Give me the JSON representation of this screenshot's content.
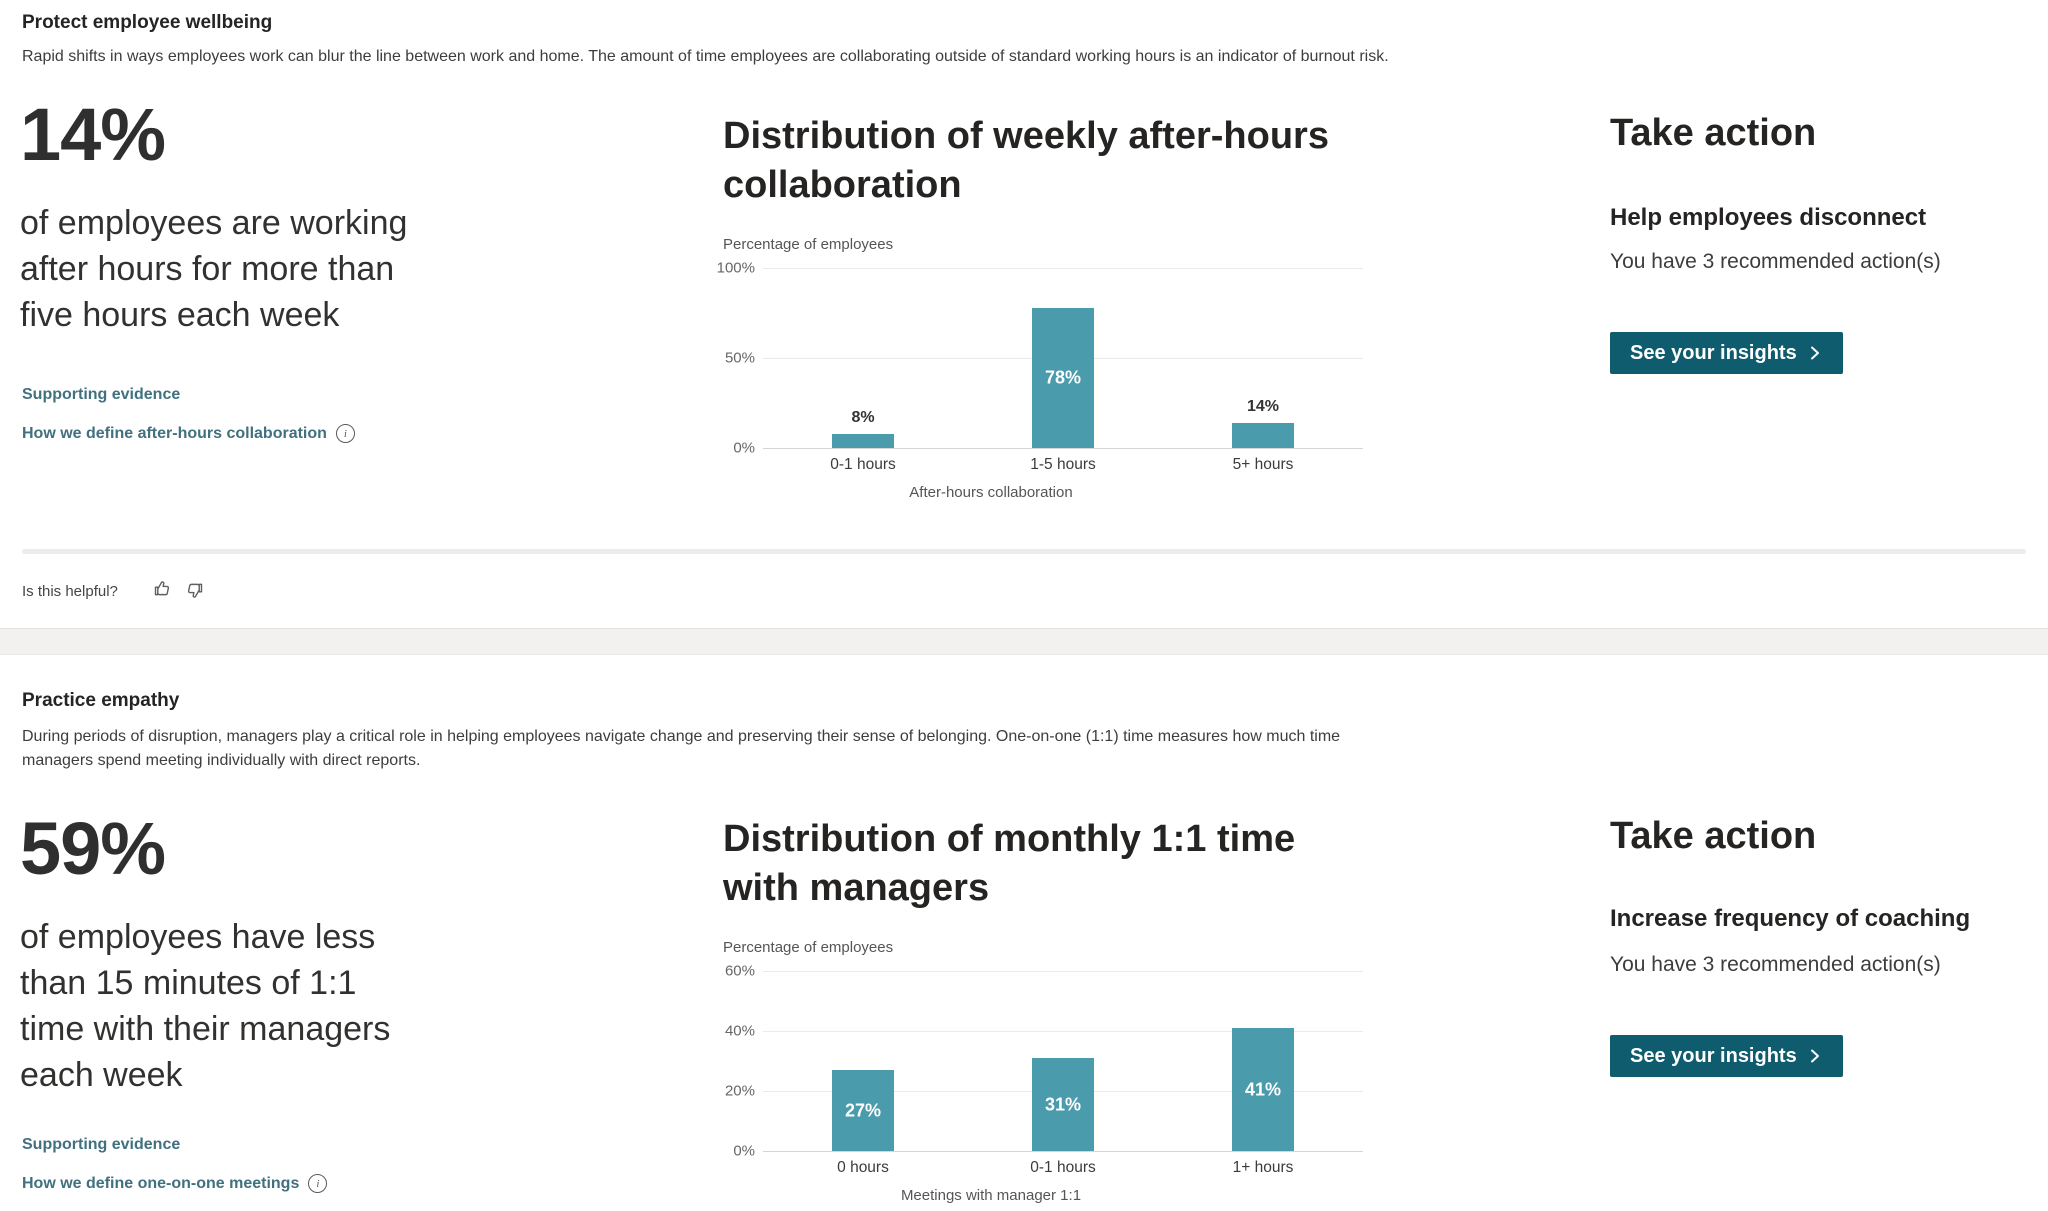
{
  "colors": {
    "bar": "#4A9BAB",
    "button_bg": "#0E5C6E",
    "link": "#41707F",
    "separator_band": "#F2F1EF"
  },
  "feedback": {
    "label": "Is this helpful?"
  },
  "sections": [
    {
      "title": "Protect employee wellbeing",
      "description": "Rapid shifts in ways employees work can blur the line between work and home. The amount of time employees are collaborating outside of standard working hours is an indicator of burnout risk.",
      "stat_value": "14%",
      "stat_caption": "of employees are working\nafter hours for more than\nfive hours each week",
      "link_supporting": "Supporting evidence",
      "link_definition": "How we define after-hours collaboration",
      "chart_title_display": "Distribution of weekly after-hours\ncollaboration",
      "action_heading": "Take action",
      "action_title": "Help employees disconnect",
      "action_note": "You have 3 recommended action(s)",
      "action_button": "See your insights"
    },
    {
      "title": "Practice empathy",
      "description": "During periods of disruption, managers play a critical role in helping employees navigate change and preserving their sense of belonging. One-on-one (1:1) time measures how much time\nmanagers spend meeting individually with direct reports.",
      "stat_value": "59%",
      "stat_caption": "of employees have less\nthan 15 minutes of 1:1\ntime with their managers\neach week",
      "link_supporting": "Supporting evidence",
      "link_definition": "How we define one-on-one meetings",
      "chart_title_display": "Distribution of monthly 1:1 time\nwith managers",
      "action_heading": "Take action",
      "action_title": "Increase frequency of coaching",
      "action_note": "You have 3 recommended action(s)",
      "action_button": "See your insights"
    }
  ],
  "chart_data": [
    {
      "type": "bar",
      "title": "Distribution of weekly after-hours collaboration",
      "categories": [
        "0-1 hours",
        "1-5 hours",
        "5+ hours"
      ],
      "values": [
        8,
        78,
        14
      ],
      "xlabel": "After-hours collaboration",
      "ylabel": "Percentage of employees",
      "ylim": [
        0,
        100
      ],
      "yticks": [
        "0%",
        "50%",
        "100%"
      ],
      "grid": true,
      "bar_color": "#4A9BAB",
      "value_labels": [
        "8%",
        "78%",
        "14%"
      ],
      "legend": "none"
    },
    {
      "type": "bar",
      "title": "Distribution of monthly 1:1 time with managers",
      "categories": [
        "0 hours",
        "0-1 hours",
        "1+ hours"
      ],
      "values": [
        27,
        31,
        41
      ],
      "xlabel": "Meetings with manager 1:1",
      "ylabel": "Percentage of employees",
      "ylim": [
        0,
        60
      ],
      "yticks": [
        "0%",
        "20%",
        "40%",
        "60%"
      ],
      "grid": true,
      "bar_color": "#4A9BAB",
      "value_labels": [
        "27%",
        "31%",
        "41%"
      ],
      "legend": "none"
    }
  ]
}
